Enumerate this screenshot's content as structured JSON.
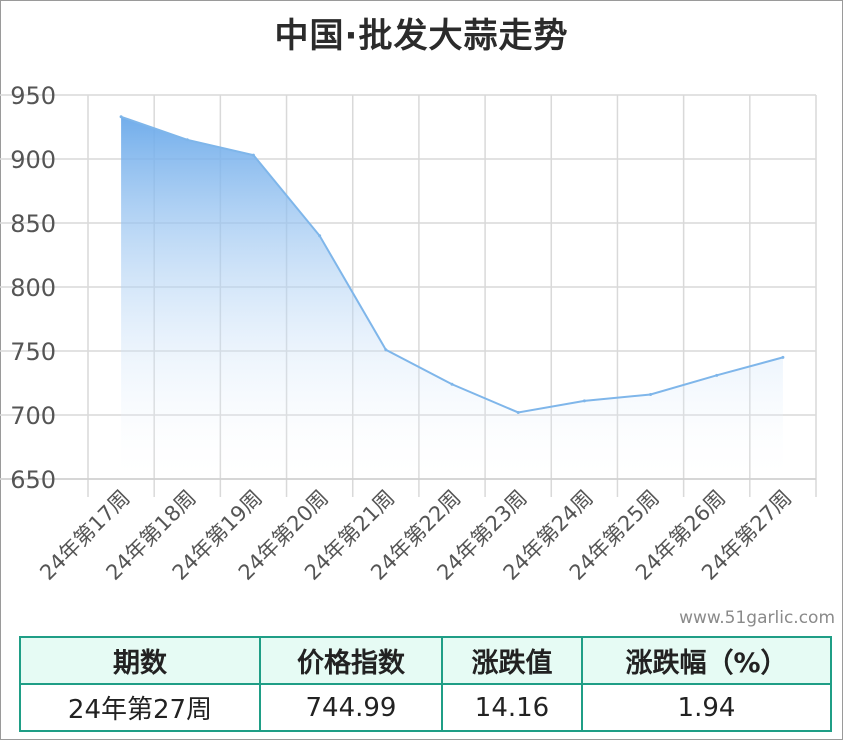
{
  "chart_data": {
    "type": "area",
    "title": "中国·批发大蒜走势",
    "categories": [
      "24年第17周",
      "24年第18周",
      "24年第19周",
      "24年第20周",
      "24年第21周",
      "24年第22周",
      "24年第23周",
      "24年第24周",
      "24年第25周",
      "24年第26周",
      "24年第27周"
    ],
    "series": [
      {
        "values": [
          933,
          915,
          903,
          840,
          751,
          724,
          702,
          711,
          716,
          731,
          745
        ]
      }
    ],
    "ylim": [
      650,
      950
    ],
    "yticks": [
      650,
      700,
      750,
      800,
      850,
      900,
      950
    ],
    "grid": true,
    "colors": {
      "line": "#7fb6ea",
      "fill_top": "#6aa9ea",
      "fill_bottom": "#ffffff",
      "grid": "#d9d9d9"
    }
  },
  "source_text": "www.51garlic.com",
  "summary_table": {
    "headers": [
      "期数",
      "价格指数",
      "涨跌值",
      "涨跌幅（%）"
    ],
    "row": [
      "24年第27周",
      "744.99",
      "14.16",
      "1.94"
    ]
  }
}
